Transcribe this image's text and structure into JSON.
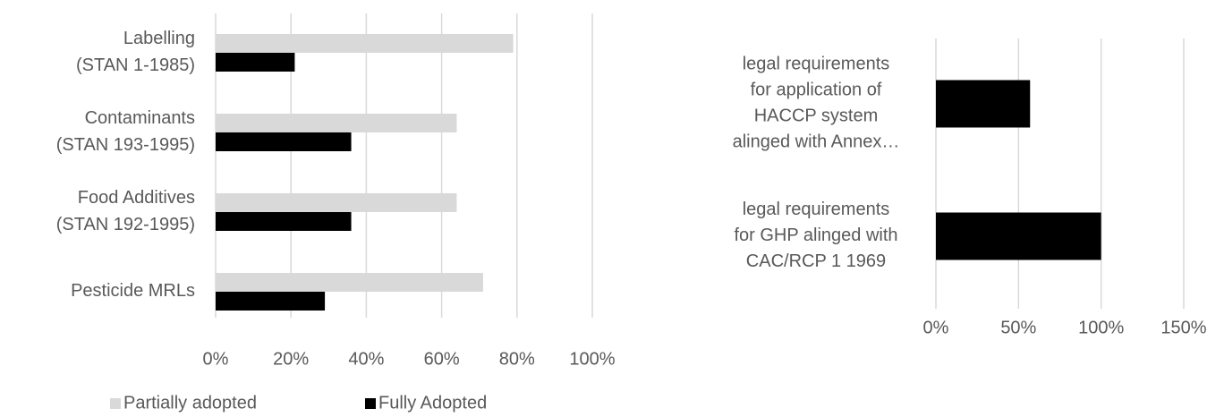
{
  "chart_data": [
    {
      "type": "hbar",
      "categories": [
        [
          "Labelling",
          "(STAN 1-1985)"
        ],
        [
          "Contaminants",
          "(STAN 193-1995)"
        ],
        [
          "Food Additives",
          "(STAN 192-1995)"
        ],
        [
          "Pesticide MRLs"
        ]
      ],
      "series": [
        {
          "name": "Partially adopted",
          "color": "#d9d9d9",
          "values": [
            79,
            64,
            64,
            71
          ]
        },
        {
          "name": "Fully Adopted",
          "color": "#000000",
          "values": [
            21,
            36,
            36,
            29
          ]
        }
      ],
      "xlim": [
        0,
        100
      ],
      "xticks": [
        {
          "value": 0,
          "label": "0%"
        },
        {
          "value": 20,
          "label": "20%"
        },
        {
          "value": 40,
          "label": "40%"
        },
        {
          "value": 60,
          "label": "60%"
        },
        {
          "value": 80,
          "label": "80%"
        },
        {
          "value": 100,
          "label": "100%"
        }
      ],
      "grid": true,
      "legend": "bottom"
    },
    {
      "type": "hbar",
      "categories": [
        [
          "legal requirements",
          "for application of",
          "HACCP system",
          "alinged with Annex…"
        ],
        [
          "legal requirements",
          "for GHP alinged with",
          "CAC/RCP 1 1969"
        ]
      ],
      "series": [
        {
          "color": "#000000",
          "values": [
            57,
            100
          ]
        }
      ],
      "xlim": [
        0,
        150
      ],
      "xticks": [
        {
          "value": 0,
          "label": "0%"
        },
        {
          "value": 50,
          "label": "50%"
        },
        {
          "value": 100,
          "label": "100%"
        },
        {
          "value": 150,
          "label": "150%"
        }
      ],
      "grid": true
    }
  ]
}
